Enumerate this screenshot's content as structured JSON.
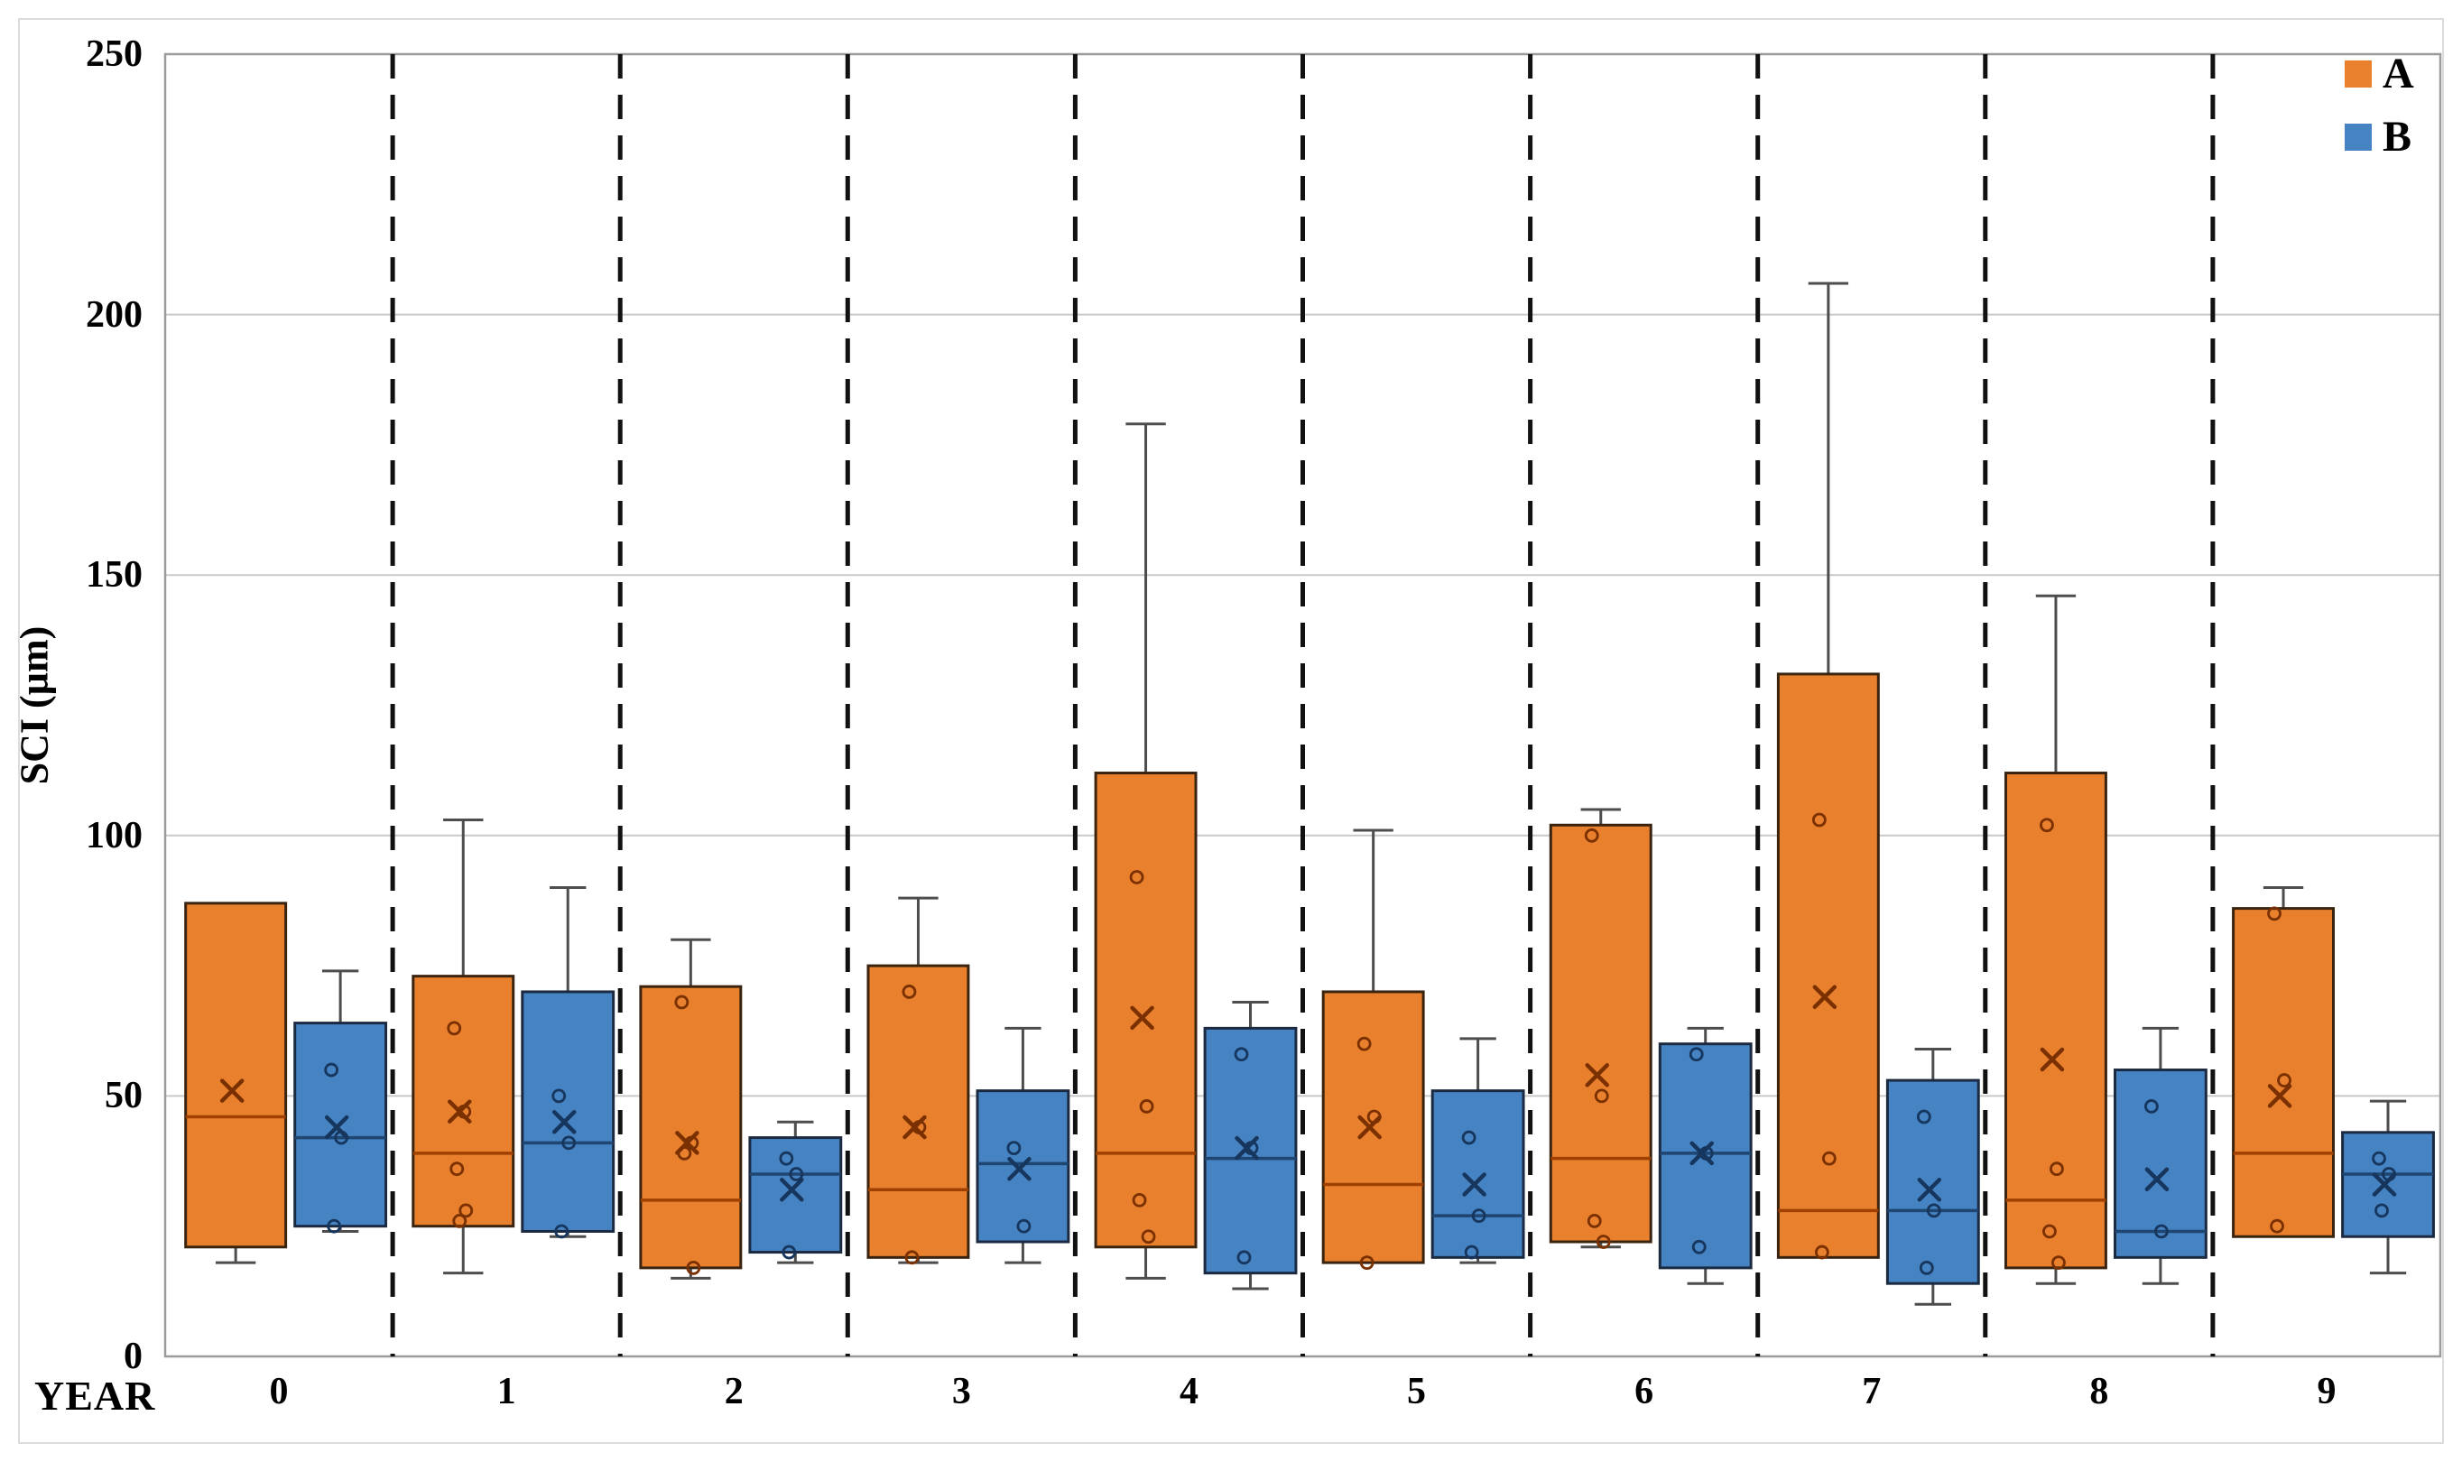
{
  "figure": {
    "background": "#ffffff",
    "frame_color": "#dcdcdc"
  },
  "axes": {
    "y_title": "SCI (µm)",
    "x_title": "YEAR",
    "y_ticks": [
      0,
      50,
      100,
      150,
      200,
      250
    ],
    "y_tick_labels": [
      "0",
      "50",
      "100",
      "150",
      "200",
      "250"
    ],
    "y_max": 250,
    "grid_color": "#c9c9c9",
    "border_color": "#9b9b9b",
    "separator_color": "#111111"
  },
  "legend": [
    {
      "label": "A",
      "color": "#e8802e"
    },
    {
      "label": "B",
      "color": "#4583c3"
    }
  ],
  "chart_data": {
    "type": "grouped-boxplot",
    "title": "",
    "xlabel": "YEAR",
    "ylabel": "SCI (µm)",
    "ylim": [
      0,
      250
    ],
    "grid": true,
    "legend_position": "top-right",
    "categories": [
      "0",
      "1",
      "2",
      "3",
      "4",
      "5",
      "6",
      "7",
      "8",
      "9"
    ],
    "series": [
      {
        "name": "A",
        "fill": "#e8802e",
        "edge": "#3a2410",
        "median_color": "#a04000",
        "marker_color": "#7a3000",
        "whisker_color": "#4d4d4d",
        "boxes": [
          {
            "min": 18,
            "q1": 21,
            "median": 46,
            "mean": 51,
            "q3": 87,
            "max": 87,
            "points": []
          },
          {
            "min": 16,
            "q1": 25,
            "median": 39,
            "mean": 47,
            "q3": 73,
            "max": 103,
            "points": [
              63,
              47,
              36,
              28,
              26
            ]
          },
          {
            "min": 15,
            "q1": 17,
            "median": 30,
            "mean": 41,
            "q3": 71,
            "max": 80,
            "points": [
              68,
              41,
              39,
              17
            ]
          },
          {
            "min": 18,
            "q1": 19,
            "median": 32,
            "mean": 44,
            "q3": 75,
            "max": 88,
            "points": [
              70,
              44,
              19
            ]
          },
          {
            "min": 15,
            "q1": 21,
            "median": 39,
            "mean": 65,
            "q3": 112,
            "max": 179,
            "points": [
              92,
              48,
              30,
              23
            ]
          },
          {
            "min": 18,
            "q1": 18,
            "median": 33,
            "mean": 44,
            "q3": 70,
            "max": 101,
            "points": [
              60,
              46,
              18
            ]
          },
          {
            "min": 21,
            "q1": 22,
            "median": 38,
            "mean": 54,
            "q3": 102,
            "max": 105,
            "points": [
              100,
              50,
              26,
              22
            ]
          },
          {
            "min": 19,
            "q1": 19,
            "median": 28,
            "mean": 69,
            "q3": 131,
            "max": 206,
            "points": [
              103,
              38,
              20
            ]
          },
          {
            "min": 14,
            "q1": 17,
            "median": 30,
            "mean": 57,
            "q3": 112,
            "max": 146,
            "points": [
              102,
              36,
              24,
              18
            ]
          },
          {
            "min": 23,
            "q1": 23,
            "median": 39,
            "mean": 50,
            "q3": 86,
            "max": 90,
            "points": [
              85,
              53,
              25
            ]
          }
        ]
      },
      {
        "name": "B",
        "fill": "#4583c3",
        "edge": "#1b2a41",
        "median_color": "#1f4571",
        "marker_color": "#17365d",
        "whisker_color": "#4d4d4d",
        "boxes": [
          {
            "min": 24,
            "q1": 25,
            "median": 42,
            "mean": 44,
            "q3": 64,
            "max": 74,
            "points": [
              55,
              42,
              25
            ]
          },
          {
            "min": 23,
            "q1": 24,
            "median": 41,
            "mean": 45,
            "q3": 70,
            "max": 90,
            "points": [
              50,
              41,
              24
            ]
          },
          {
            "min": 18,
            "q1": 20,
            "median": 35,
            "mean": 32,
            "q3": 42,
            "max": 45,
            "points": [
              38,
              35,
              20
            ]
          },
          {
            "min": 18,
            "q1": 22,
            "median": 37,
            "mean": 36,
            "q3": 51,
            "max": 63,
            "points": [
              40,
              25
            ]
          },
          {
            "min": 13,
            "q1": 16,
            "median": 38,
            "mean": 40,
            "q3": 63,
            "max": 68,
            "points": [
              58,
              40,
              19
            ]
          },
          {
            "min": 18,
            "q1": 19,
            "median": 27,
            "mean": 33,
            "q3": 51,
            "max": 61,
            "points": [
              42,
              27,
              20
            ]
          },
          {
            "min": 14,
            "q1": 17,
            "median": 39,
            "mean": 39,
            "q3": 60,
            "max": 63,
            "points": [
              58,
              39,
              21
            ]
          },
          {
            "min": 10,
            "q1": 14,
            "median": 28,
            "mean": 32,
            "q3": 53,
            "max": 59,
            "points": [
              46,
              28,
              17
            ]
          },
          {
            "min": 14,
            "q1": 19,
            "median": 24,
            "mean": 34,
            "q3": 55,
            "max": 63,
            "points": [
              48,
              24
            ]
          },
          {
            "min": 16,
            "q1": 23,
            "median": 35,
            "mean": 33,
            "q3": 43,
            "max": 49,
            "points": [
              38,
              35,
              28
            ]
          }
        ]
      }
    ]
  }
}
